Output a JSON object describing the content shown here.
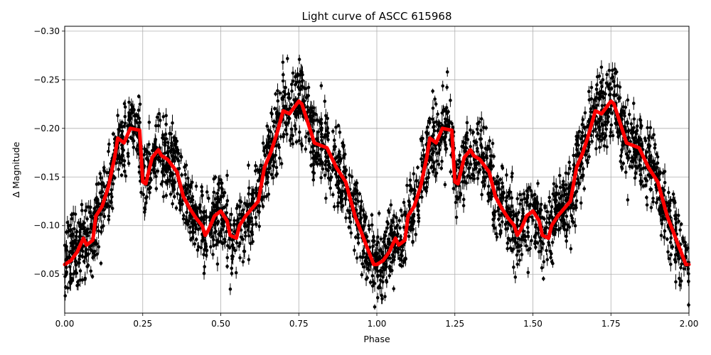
{
  "chart_data": {
    "type": "scatter",
    "title": "Light curve of ASCC 615968",
    "xlabel": "Phase",
    "ylabel": "Δ Magnitude",
    "xlim": [
      0.0,
      2.0
    ],
    "ylim": [
      -0.305,
      -0.01
    ],
    "y_inverted": true,
    "grid": true,
    "x_ticks": [
      0.0,
      0.25,
      0.5,
      0.75,
      1.0,
      1.25,
      1.5,
      1.75,
      2.0
    ],
    "x_tick_labels": [
      "0.00",
      "0.25",
      "0.50",
      "0.75",
      "1.00",
      "1.25",
      "1.50",
      "1.75",
      "2.00"
    ],
    "y_ticks": [
      -0.3,
      -0.25,
      -0.2,
      -0.15,
      -0.1,
      -0.05
    ],
    "y_tick_labels": [
      "−0.30",
      "−0.25",
      "−0.20",
      "−0.15",
      "−0.10",
      "−0.05"
    ],
    "colors": {
      "points": "#000000",
      "model": "#ff0000",
      "grid": "#b0b0b0"
    },
    "series": [
      {
        "kind": "points_with_error_bars",
        "description_of_envelope": "dense black data points with vertical error bars; band follows the red curve with spread of about ±0.05 mag",
        "count_estimate": 3000
      },
      {
        "kind": "smoothed_line",
        "x": [
          0.0,
          0.02,
          0.04,
          0.06,
          0.07,
          0.09,
          0.1,
          0.12,
          0.14,
          0.16,
          0.17,
          0.19,
          0.21,
          0.24,
          0.25,
          0.26,
          0.28,
          0.3,
          0.31,
          0.33,
          0.36,
          0.38,
          0.4,
          0.42,
          0.44,
          0.45,
          0.46,
          0.48,
          0.5,
          0.52,
          0.53,
          0.55,
          0.56,
          0.58,
          0.62,
          0.64,
          0.66,
          0.68,
          0.7,
          0.72,
          0.75,
          0.76,
          0.78,
          0.8,
          0.84,
          0.87,
          0.9,
          0.93,
          0.96,
          0.99,
          1.0
        ],
        "y": [
          -0.06,
          -0.064,
          -0.073,
          -0.087,
          -0.08,
          -0.085,
          -0.11,
          -0.12,
          -0.14,
          -0.17,
          -0.19,
          -0.185,
          -0.2,
          -0.198,
          -0.145,
          -0.143,
          -0.17,
          -0.178,
          -0.172,
          -0.168,
          -0.155,
          -0.13,
          -0.118,
          -0.108,
          -0.1,
          -0.09,
          -0.095,
          -0.11,
          -0.115,
          -0.105,
          -0.09,
          -0.087,
          -0.1,
          -0.11,
          -0.125,
          -0.16,
          -0.175,
          -0.195,
          -0.218,
          -0.215,
          -0.228,
          -0.225,
          -0.205,
          -0.185,
          -0.18,
          -0.16,
          -0.145,
          -0.11,
          -0.085,
          -0.06,
          -0.06
        ]
      }
    ]
  }
}
